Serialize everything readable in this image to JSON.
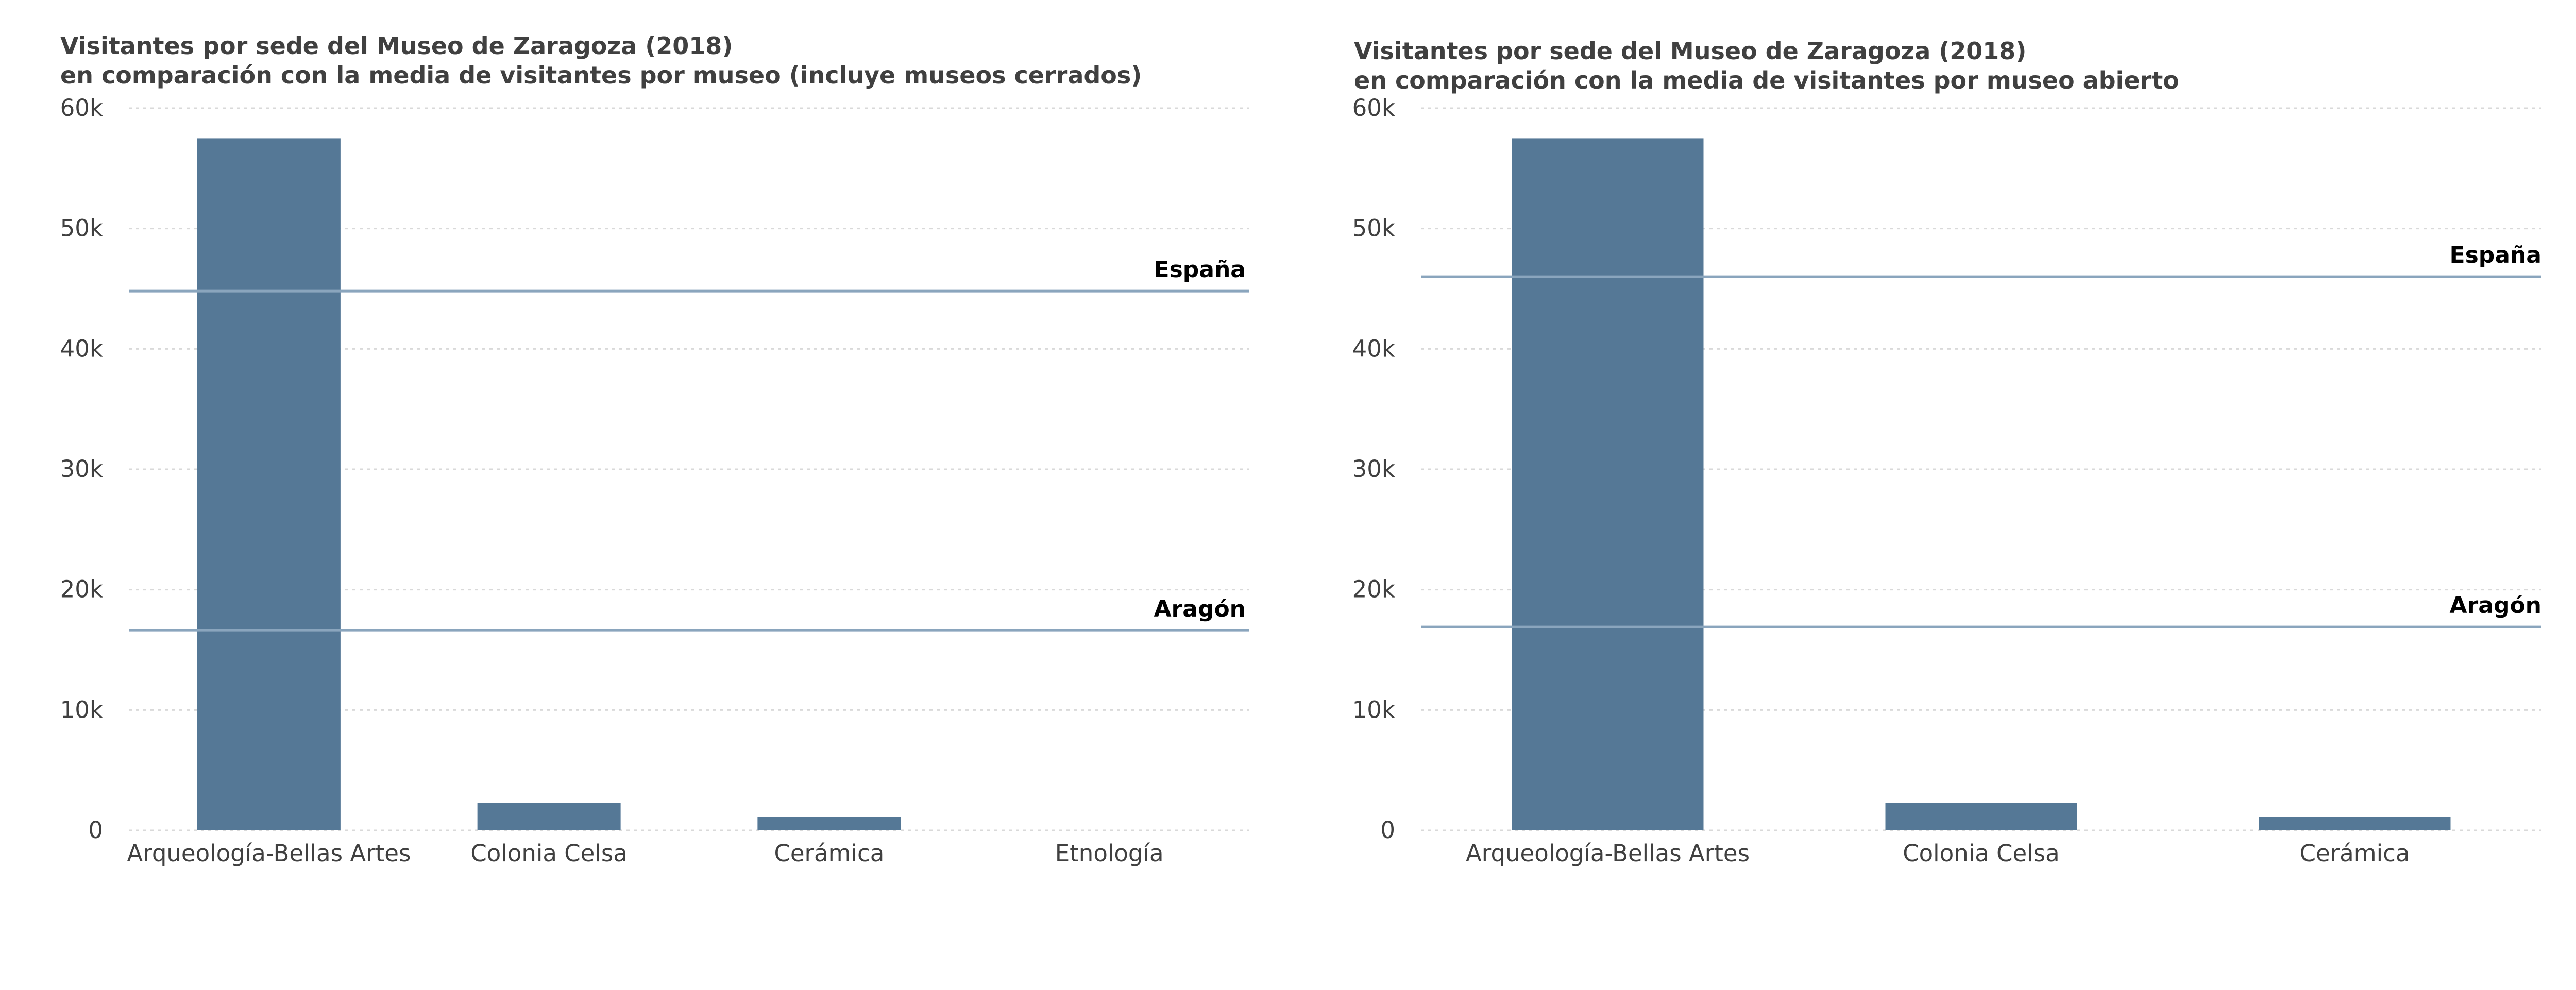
{
  "colors": {
    "bar": "#557896",
    "reference_line": "#8aa5bd",
    "grid": "#d9d9d9",
    "text": "#404040"
  },
  "chart_data": [
    {
      "type": "bar",
      "title": "Visitantes por sede del Museo de Zaragoza (2018)",
      "subtitle": "en comparación con la media de visitantes por museo (incluye museos cerrados)",
      "categories": [
        "Arqueología-Bellas Artes",
        "Colonia Celsa",
        "Cerámica",
        "Etnología"
      ],
      "values": [
        57500,
        2300,
        1100,
        0
      ],
      "ylim": [
        0,
        60000
      ],
      "yticks": [
        0,
        10000,
        20000,
        30000,
        40000,
        50000,
        60000
      ],
      "ytick_labels": [
        "0",
        "10k",
        "20k",
        "30k",
        "40k",
        "50k",
        "60k"
      ],
      "grid": true,
      "reference_lines": [
        {
          "label": "España",
          "value": 44800
        },
        {
          "label": "Aragón",
          "value": 16600
        }
      ]
    },
    {
      "type": "bar",
      "title": "Visitantes por sede del Museo de Zaragoza (2018)",
      "subtitle": "en comparación con la media de visitantes por museo abierto",
      "categories": [
        "Arqueología-Bellas Artes",
        "Colonia Celsa",
        "Cerámica"
      ],
      "values": [
        57500,
        2300,
        1100
      ],
      "ylim": [
        0,
        60000
      ],
      "yticks": [
        0,
        10000,
        20000,
        30000,
        40000,
        50000,
        60000
      ],
      "ytick_labels": [
        "0",
        "10k",
        "20k",
        "30k",
        "40k",
        "50k",
        "60k"
      ],
      "grid": true,
      "reference_lines": [
        {
          "label": "España",
          "value": 46000
        },
        {
          "label": "Aragón",
          "value": 16900
        }
      ]
    }
  ]
}
